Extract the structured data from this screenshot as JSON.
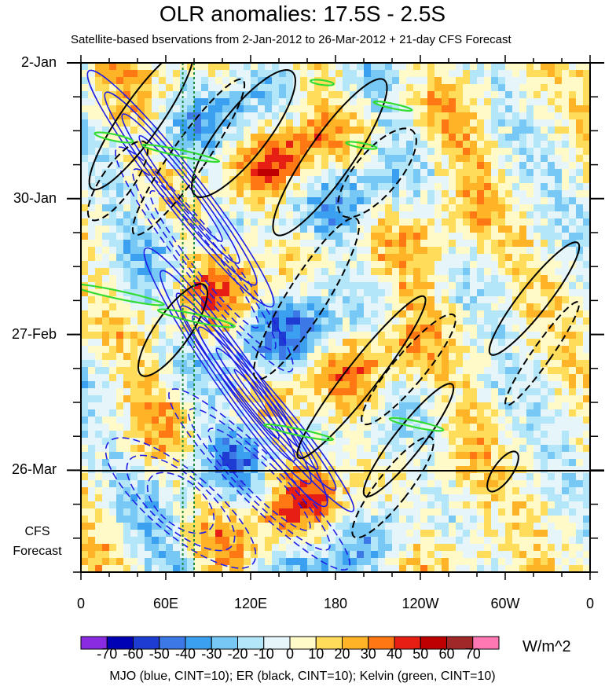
{
  "title": "OLR anomalies: 17.5S - 2.5S",
  "subtitle": "Satellite-based bservations from 2-Jan-2012 to 26-Mar-2012 + 21-day CFS Forecast",
  "chart_data": {
    "type": "heatmap",
    "title": "OLR anomalies: 17.5S - 2.5S",
    "subtitle": "Satellite-based bservations from 2-Jan-2012 to 26-Mar-2012 + 21-day CFS Forecast",
    "x_tick_labels": [
      "0",
      "60E",
      "120E",
      "180",
      "120W",
      "60W",
      "0"
    ],
    "x_range_deg_east": [
      0,
      360
    ],
    "y_tick_labels": [
      "2-Jan",
      "30-Jan",
      "27-Feb",
      "26-Mar"
    ],
    "y_range": [
      "2-Jan-2012",
      "16-Apr-2012"
    ],
    "observation_end": "26-Mar-2012",
    "forecast_label": [
      "CFS",
      "Forecast"
    ],
    "forecast_days": 21,
    "colorbar": {
      "units": "W/m^2",
      "tick_labels": [
        "-70",
        "-60",
        "-50",
        "-40",
        "-30",
        "-20",
        "-10",
        "0",
        "10",
        "20",
        "30",
        "40",
        "50",
        "60",
        "70"
      ],
      "colors": [
        "#8a2be2",
        "#0000b4",
        "#1e3cd2",
        "#3c78e6",
        "#3ca0f0",
        "#78c8f5",
        "#b4e6fa",
        "#e6f5fa",
        "#fffac8",
        "#ffdc5a",
        "#ffb428",
        "#ff7814",
        "#e61e14",
        "#be0000",
        "#a02828",
        "#ff78b4"
      ]
    },
    "contours": [
      {
        "name": "MJO",
        "color": "#1e1ee6",
        "cint": 10
      },
      {
        "name": "ER",
        "color": "#000000",
        "cint": 10
      },
      {
        "name": "Kelvin",
        "color": "#32dc32",
        "cint": 10
      }
    ],
    "reference_lines_deg_east": [
      72,
      80
    ],
    "legend_text": "MJO (blue, CINT=10); ER (black, CINT=10); Kelvin (green, CINT=10)"
  }
}
